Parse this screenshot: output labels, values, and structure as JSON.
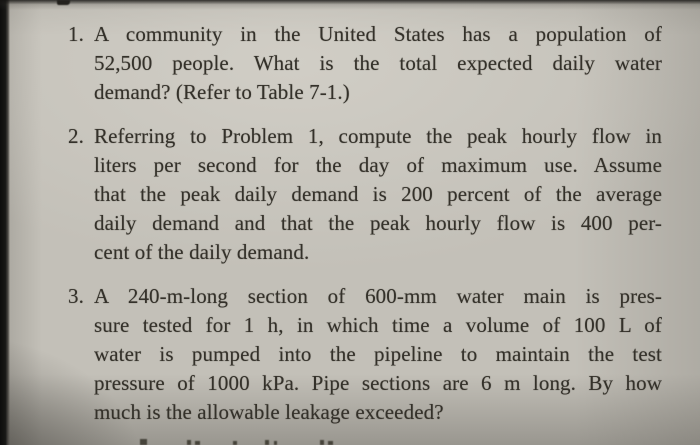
{
  "photo": {
    "description_colors": {
      "paper": "#c3c0b8",
      "ink": "#34312a",
      "edge_shadow": "#0d0d0c"
    }
  },
  "problems": [
    {
      "number": "1.",
      "lines": [
        "A community in the United States has a population of",
        "52,500 people. What is the total expected daily water",
        "demand? (Refer to Table 7-1.)"
      ]
    },
    {
      "number": "2.",
      "lines": [
        "Referring to Problem 1, compute the peak hourly flow in",
        "liters per second for the day of maximum use. Assume",
        "that the peak daily demand is 200 percent of the average",
        "daily demand and that the peak hourly flow is 400 per-",
        "cent of the daily demand."
      ]
    },
    {
      "number": "3.",
      "lines": [
        "A 240-m-long section of 600-mm water main is pres-",
        "sure tested for 1 h, in which time a volume of 100 L of",
        "water is pumped into the pipeline to maintain the test",
        "pressure of 1000 kPa. Pipe sections are 6 m long. By how",
        "much is the allowable leakage exceeded?"
      ]
    }
  ]
}
